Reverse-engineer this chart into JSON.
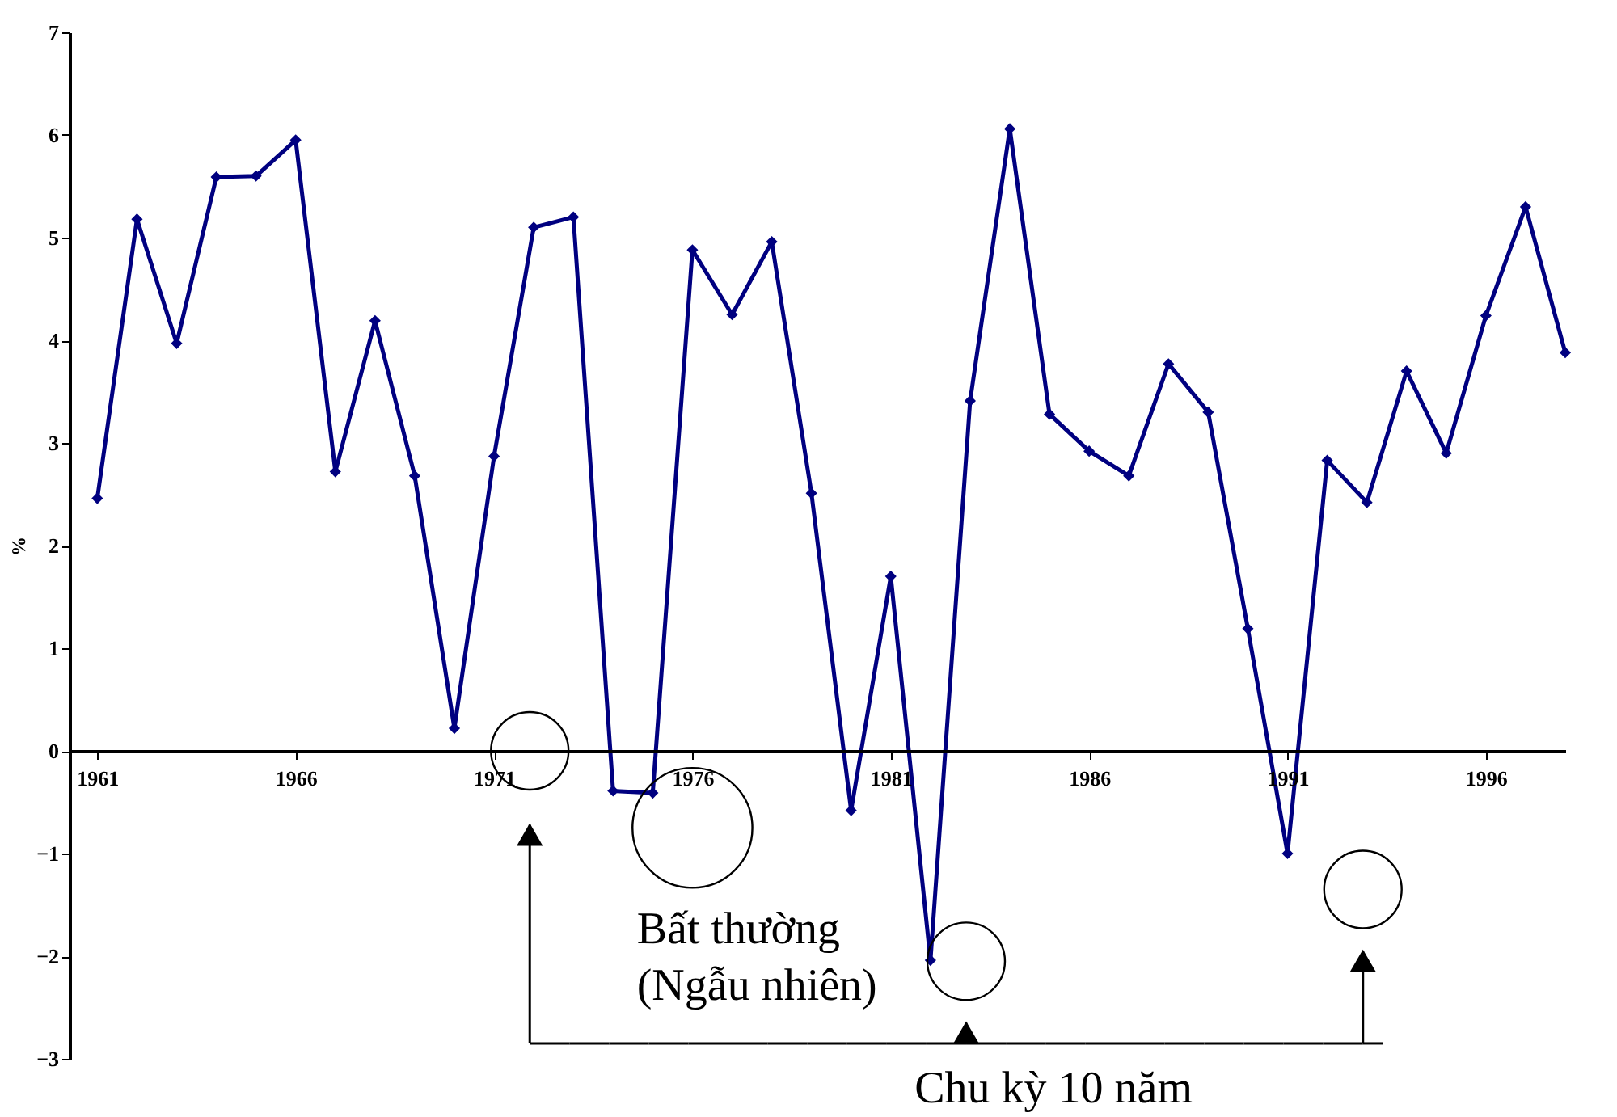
{
  "chart_data": {
    "type": "line",
    "ylabel": "%",
    "x": [
      1961,
      1962,
      1963,
      1964,
      1965,
      1966,
      1967,
      1968,
      1969,
      1970,
      1971,
      1972,
      1973,
      1974,
      1975,
      1976,
      1977,
      1978,
      1979,
      1980,
      1981,
      1982,
      1983,
      1984,
      1985,
      1986,
      1987,
      1988,
      1989,
      1990,
      1991,
      1992,
      1993,
      1994,
      1995,
      1996,
      1997,
      1998
    ],
    "series": [
      {
        "color": "#000080",
        "values": [
          2.46,
          5.18,
          3.97,
          5.59,
          5.6,
          5.95,
          2.72,
          4.19,
          2.68,
          0.22,
          2.87,
          5.1,
          5.2,
          -0.39,
          -0.41,
          4.88,
          4.25,
          4.96,
          2.51,
          -0.58,
          1.7,
          -2.04,
          3.41,
          6.06,
          3.28,
          2.92,
          2.68,
          3.77,
          3.3,
          1.19,
          -1.0,
          2.83,
          2.42,
          3.7,
          2.9,
          4.24,
          5.3,
          3.88
        ]
      }
    ],
    "xlim": [
      1960.3,
      1998
    ],
    "xticks": [
      1961,
      1966,
      1971,
      1976,
      1981,
      1986,
      1991,
      1996
    ],
    "ylim": [
      -3,
      7
    ],
    "yticks": [
      -3,
      -2,
      -1,
      0,
      1,
      2,
      3,
      4,
      5,
      6,
      7
    ],
    "marker": "diamond",
    "line_style": "solid",
    "grid": false,
    "annotations": [
      "Bất thường",
      "(Ngẫu nhiên)",
      "Chu kỳ 10 năm"
    ]
  }
}
